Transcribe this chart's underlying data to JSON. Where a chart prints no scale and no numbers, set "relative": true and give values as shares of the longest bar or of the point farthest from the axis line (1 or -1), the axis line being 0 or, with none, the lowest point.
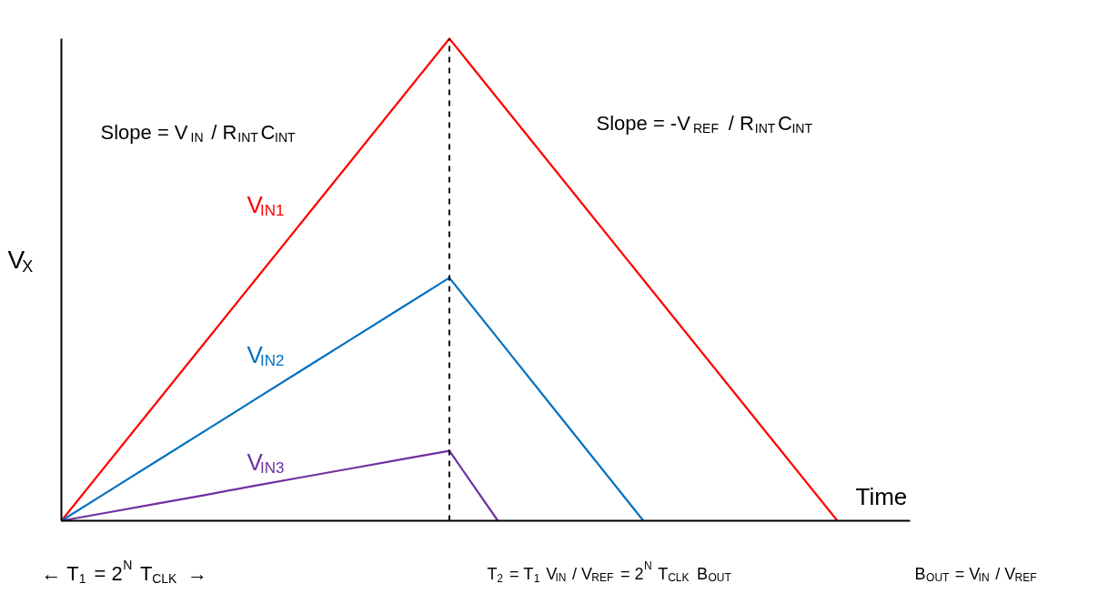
{
  "chart_data": {
    "type": "line",
    "relative": true,
    "marker": "none",
    "line_style": "solid",
    "xlabel": "Time",
    "ylabel": "V$_{X}$",
    "categories": [
      null,
      null,
      null,
      null,
      null,
      null,
      null,
      null,
      null,
      null,
      null,
      null,
      null,
      null,
      null,
      null,
      null
    ],
    "series": [
      {
        "name": "V$_{IN1}$",
        "color": "#ff0000",
        "values": [
          0,
          0.125,
          0.25,
          0.375,
          0.5,
          0.625,
          0.75,
          0.875,
          1,
          0.875,
          0.75,
          0.625,
          0.5,
          0.375,
          0.25,
          0.125,
          0
        ]
      },
      {
        "name": "V$_{IN2}$",
        "color": "#0070c0",
        "values": [
          0,
          0.063,
          0.126,
          0.189,
          0.252,
          0.315,
          0.378,
          0.441,
          0.504,
          0.378,
          0.252,
          0.126,
          0,
          null,
          null,
          null,
          null
        ]
      },
      {
        "name": "V$_{IN3}$",
        "color": "#7030a0",
        "values": [
          0,
          0.018,
          0.036,
          0.054,
          0.073,
          0.091,
          0.109,
          0.127,
          0.145,
          0,
          null,
          null,
          null,
          null,
          null,
          null,
          null
        ]
      }
    ],
    "annotations": [
      "Slope = V$_{IN}$ / R$_{INT}$C$_{INT}$",
      "Slope = -V$_{REF}$ / R$_{INT}$C$_{INT}$",
      "← T$_{1}$ = 2$^{N}$ T$_{CLK}$ →",
      "T$_{2}$ = T$_{1}$ V$_{IN}$ / V$_{REF}$ = 2$^{N}$ T$_{CLK}$ B$_{OUT}$",
      "B$_{OUT}$ = V$_{IN}$ / V$_{REF}$"
    ]
  }
}
